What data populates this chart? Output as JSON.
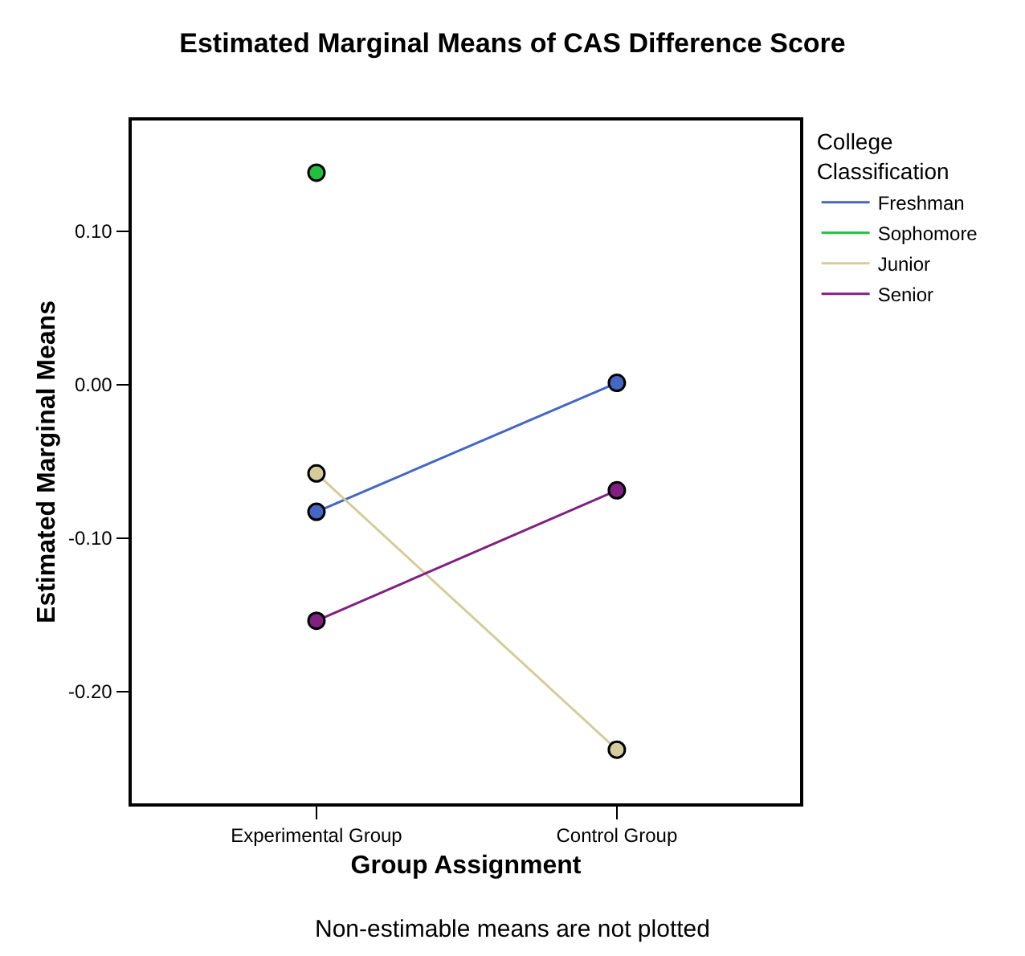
{
  "chart_data": {
    "type": "line",
    "title": "Estimated Marginal Means of CAS Difference Score",
    "xlabel": "Group Assignment",
    "ylabel": "Estimated Marginal Means",
    "legend_title": "College Classification",
    "categories": [
      "Experimental Group",
      "Control Group"
    ],
    "series": [
      {
        "name": "Freshman",
        "color": "#4466c4",
        "values": [
          -0.083,
          0.001
        ]
      },
      {
        "name": "Sophomore",
        "color": "#22c040",
        "values": [
          0.138,
          null
        ]
      },
      {
        "name": "Junior",
        "color": "#d4cc9a",
        "values": [
          -0.058,
          -0.238
        ]
      },
      {
        "name": "Senior",
        "color": "#802080",
        "values": [
          -0.154,
          -0.069
        ]
      }
    ],
    "ylim": [
      -0.273,
      0.172
    ],
    "yticks": [
      {
        "value": 0.1,
        "label": "0.10"
      },
      {
        "value": 0,
        "label": "0.00"
      },
      {
        "value": -0.1,
        "label": "-0.10"
      },
      {
        "value": -0.2,
        "label": "-0.20"
      }
    ],
    "marker": "circle",
    "line_style": "solid",
    "legend": "top right",
    "annotations": [
      "Non-estimable means are not plotted"
    ]
  }
}
